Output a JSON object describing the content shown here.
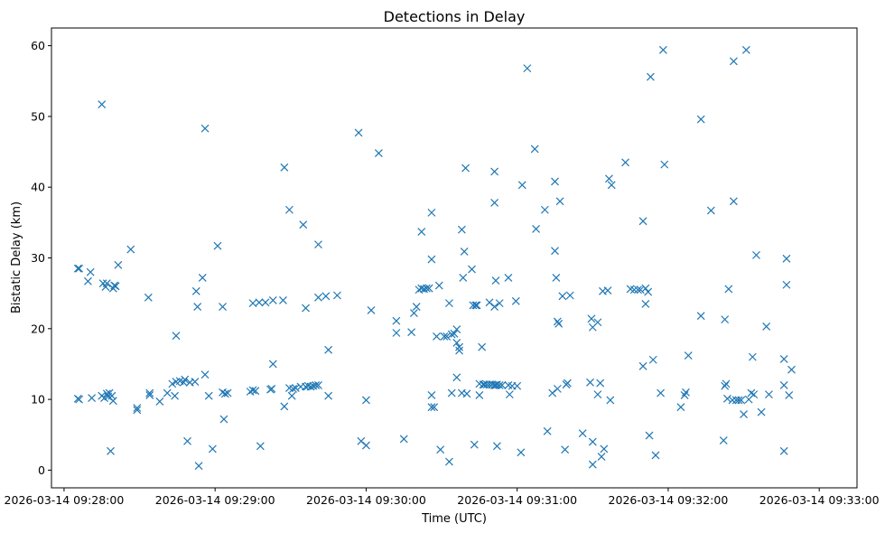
{
  "chart_data": {
    "type": "scatter",
    "title": "Detections in Delay",
    "xlabel": "Time (UTC)",
    "ylabel": "Bistatic Delay (km)",
    "marker": "x",
    "color": "#1f77b4",
    "x_unit": "seconds after 2026-03-14 09:28:00 UTC",
    "xlim": [
      -5,
      315
    ],
    "ylim": [
      -2.5,
      62.5
    ],
    "xticks": [
      {
        "value": 0,
        "label": "2026-03-14 09:28:00"
      },
      {
        "value": 60,
        "label": "2026-03-14 09:29:00"
      },
      {
        "value": 120,
        "label": "2026-03-14 09:30:00"
      },
      {
        "value": 180,
        "label": "2026-03-14 09:31:00"
      },
      {
        "value": 240,
        "label": "2026-03-14 09:32:00"
      },
      {
        "value": 300,
        "label": "2026-03-14 09:33:00"
      }
    ],
    "yticks": [
      {
        "value": 0,
        "label": "0"
      },
      {
        "value": 10,
        "label": "10"
      },
      {
        "value": 20,
        "label": "20"
      },
      {
        "value": 30,
        "label": "30"
      },
      {
        "value": 40,
        "label": "40"
      },
      {
        "value": 50,
        "label": "50"
      },
      {
        "value": 60,
        "label": "60"
      }
    ],
    "points": [
      [
        5.5,
        28.5
      ],
      [
        6,
        28.5
      ],
      [
        5.5,
        10.1
      ],
      [
        6,
        10
      ],
      [
        9.5,
        26.7
      ],
      [
        10.5,
        28
      ],
      [
        11,
        10.2
      ],
      [
        15,
        51.7
      ],
      [
        15,
        10.5
      ],
      [
        15.5,
        26.4
      ],
      [
        16,
        10.2
      ],
      [
        16.5,
        25.9
      ],
      [
        17,
        26.4
      ],
      [
        17,
        10.8
      ],
      [
        17.5,
        10.4
      ],
      [
        18,
        10.9
      ],
      [
        18.5,
        2.7
      ],
      [
        19,
        10.5
      ],
      [
        19.5,
        25.7
      ],
      [
        19.5,
        9.8
      ],
      [
        20,
        26.1
      ],
      [
        20.5,
        26
      ],
      [
        21.5,
        29
      ],
      [
        26.5,
        31.2
      ],
      [
        29,
        8.8
      ],
      [
        29,
        8.5
      ],
      [
        33.5,
        24.4
      ],
      [
        34,
        10.9
      ],
      [
        34,
        10.6
      ],
      [
        38,
        9.7
      ],
      [
        41,
        10.9
      ],
      [
        43,
        12.2
      ],
      [
        44,
        10.5
      ],
      [
        44.5,
        19
      ],
      [
        44.5,
        12.5
      ],
      [
        46,
        12.6
      ],
      [
        47.5,
        12.4
      ],
      [
        48,
        12.8
      ],
      [
        49,
        4.1
      ],
      [
        50,
        12.4
      ],
      [
        52,
        12.5
      ],
      [
        52.5,
        25.3
      ],
      [
        53,
        23.1
      ],
      [
        53.5,
        0.6
      ],
      [
        55,
        27.2
      ],
      [
        56,
        48.3
      ],
      [
        56,
        13.5
      ],
      [
        57.5,
        10.5
      ],
      [
        59,
        3
      ],
      [
        61,
        31.7
      ],
      [
        63,
        23.1
      ],
      [
        63,
        11
      ],
      [
        63.5,
        7.2
      ],
      [
        64,
        10.8
      ],
      [
        65,
        10.9
      ],
      [
        74,
        11.1
      ],
      [
        75,
        23.6
      ],
      [
        75,
        11.3
      ],
      [
        76,
        11.2
      ],
      [
        77.5,
        23.7
      ],
      [
        78,
        3.4
      ],
      [
        80,
        23.7
      ],
      [
        82,
        11.4
      ],
      [
        82.5,
        11.5
      ],
      [
        83,
        24
      ],
      [
        83,
        15
      ],
      [
        87,
        24
      ],
      [
        87.5,
        42.8
      ],
      [
        87.5,
        9
      ],
      [
        89.5,
        36.8
      ],
      [
        89.5,
        11.6
      ],
      [
        90.5,
        10.5
      ],
      [
        91,
        11.5
      ],
      [
        92,
        11.6
      ],
      [
        94,
        11.8
      ],
      [
        95,
        34.7
      ],
      [
        96,
        22.9
      ],
      [
        96,
        11.8
      ],
      [
        97,
        11.9
      ],
      [
        98,
        11.8
      ],
      [
        99,
        11.9
      ],
      [
        100,
        12
      ],
      [
        101,
        24.4
      ],
      [
        101,
        31.9
      ],
      [
        101,
        12
      ],
      [
        104,
        24.6
      ],
      [
        105,
        17
      ],
      [
        105,
        10.5
      ],
      [
        108.5,
        24.7
      ],
      [
        117,
        47.7
      ],
      [
        118,
        4.1
      ],
      [
        120,
        9.9
      ],
      [
        120,
        3.5
      ],
      [
        122,
        22.6
      ],
      [
        125,
        44.8
      ],
      [
        132,
        21.1
      ],
      [
        132,
        19.4
      ],
      [
        135,
        4.4
      ],
      [
        138,
        19.5
      ],
      [
        139,
        22.2
      ],
      [
        140,
        23.1
      ],
      [
        141,
        25.5
      ],
      [
        142,
        33.7
      ],
      [
        142,
        25.7
      ],
      [
        143,
        25.6
      ],
      [
        144,
        25.7
      ],
      [
        145,
        25.7
      ],
      [
        146,
        29.8
      ],
      [
        146,
        36.4
      ],
      [
        146,
        10.6
      ],
      [
        146,
        8.9
      ],
      [
        147,
        8.9
      ],
      [
        148,
        18.9
      ],
      [
        149,
        26.1
      ],
      [
        149.5,
        2.9
      ],
      [
        151,
        18.9
      ],
      [
        152,
        18.9
      ],
      [
        153,
        23.6
      ],
      [
        153,
        1.2
      ],
      [
        154,
        19.2
      ],
      [
        154,
        10.9
      ],
      [
        155,
        19.3
      ],
      [
        156,
        19.9
      ],
      [
        156,
        13.1
      ],
      [
        156,
        18
      ],
      [
        157,
        17.4
      ],
      [
        157,
        16.9
      ],
      [
        158,
        10.9
      ],
      [
        158,
        34
      ],
      [
        158.5,
        27.2
      ],
      [
        159,
        30.9
      ],
      [
        159.5,
        42.7
      ],
      [
        160,
        10.8
      ],
      [
        162,
        28.4
      ],
      [
        162.5,
        23.3
      ],
      [
        163,
        3.6
      ],
      [
        163.5,
        23.3
      ],
      [
        164,
        23.3
      ],
      [
        165,
        10.6
      ],
      [
        165,
        12.2
      ],
      [
        166,
        17.4
      ],
      [
        166.5,
        12.1
      ],
      [
        167,
        12.1
      ],
      [
        168,
        12.1
      ],
      [
        169,
        23.7
      ],
      [
        169,
        12.1
      ],
      [
        170,
        12.1
      ],
      [
        171,
        12
      ],
      [
        171,
        23.1
      ],
      [
        171,
        37.8
      ],
      [
        171,
        42.2
      ],
      [
        171.5,
        26.8
      ],
      [
        171.5,
        12
      ],
      [
        172,
        3.4
      ],
      [
        172,
        12.1
      ],
      [
        173,
        23.6
      ],
      [
        173,
        12
      ],
      [
        174,
        12
      ],
      [
        176.5,
        27.2
      ],
      [
        176.5,
        12
      ],
      [
        177,
        10.7
      ],
      [
        178,
        11.9
      ],
      [
        179.5,
        23.9
      ],
      [
        180,
        11.9
      ],
      [
        181.5,
        2.5
      ],
      [
        182,
        40.3
      ],
      [
        184,
        56.8
      ],
      [
        187,
        45.4
      ],
      [
        187.5,
        34.1
      ],
      [
        191,
        36.8
      ],
      [
        192,
        5.5
      ],
      [
        194,
        10.9
      ],
      [
        195,
        40.8
      ],
      [
        195,
        31
      ],
      [
        195.5,
        27.2
      ],
      [
        196,
        11.5
      ],
      [
        196,
        21
      ],
      [
        196.5,
        20.7
      ],
      [
        197,
        38
      ],
      [
        198,
        24.6
      ],
      [
        199,
        2.9
      ],
      [
        199.5,
        12.1
      ],
      [
        200,
        12.3
      ],
      [
        201,
        24.7
      ],
      [
        206,
        5.2
      ],
      [
        209,
        12.4
      ],
      [
        209.5,
        21.4
      ],
      [
        210,
        4
      ],
      [
        210,
        20.2
      ],
      [
        210,
        0.8
      ],
      [
        212,
        10.7
      ],
      [
        212,
        20.9
      ],
      [
        213,
        12.3
      ],
      [
        213.5,
        1.9
      ],
      [
        214,
        25.3
      ],
      [
        214.5,
        3
      ],
      [
        216,
        25.4
      ],
      [
        216.5,
        41.2
      ],
      [
        217,
        9.9
      ],
      [
        217.5,
        40.3
      ],
      [
        223,
        43.5
      ],
      [
        225,
        25.6
      ],
      [
        226.5,
        25.5
      ],
      [
        228,
        25.5
      ],
      [
        229,
        25.5
      ],
      [
        230,
        35.2
      ],
      [
        230,
        14.7
      ],
      [
        231,
        25.7
      ],
      [
        231,
        23.5
      ],
      [
        232,
        25.2
      ],
      [
        232.5,
        4.9
      ],
      [
        233,
        55.6
      ],
      [
        234,
        15.6
      ],
      [
        235,
        2.1
      ],
      [
        237,
        10.9
      ],
      [
        238,
        59.4
      ],
      [
        238.5,
        43.2
      ],
      [
        245,
        8.9
      ],
      [
        246.5,
        10.6
      ],
      [
        247,
        11
      ],
      [
        248,
        16.2
      ],
      [
        253,
        21.8
      ],
      [
        253,
        49.6
      ],
      [
        257,
        36.7
      ],
      [
        262,
        4.2
      ],
      [
        262.5,
        11.9
      ],
      [
        262.5,
        21.3
      ],
      [
        263,
        12.2
      ],
      [
        263.5,
        10.1
      ],
      [
        264,
        25.6
      ],
      [
        265.5,
        9.9
      ],
      [
        266,
        57.8
      ],
      [
        266,
        38
      ],
      [
        267,
        9.9
      ],
      [
        268,
        9.9
      ],
      [
        269,
        9.9
      ],
      [
        270,
        7.9
      ],
      [
        271,
        59.4
      ],
      [
        272,
        10
      ],
      [
        273,
        10.9
      ],
      [
        273.5,
        16
      ],
      [
        274,
        10.7
      ],
      [
        275,
        30.4
      ],
      [
        277,
        8.2
      ],
      [
        279,
        20.3
      ],
      [
        280,
        10.7
      ],
      [
        286,
        12
      ],
      [
        286,
        2.7
      ],
      [
        286,
        15.7
      ],
      [
        287,
        29.9
      ],
      [
        287,
        26.2
      ],
      [
        288,
        10.6
      ],
      [
        289,
        14.2
      ]
    ]
  }
}
